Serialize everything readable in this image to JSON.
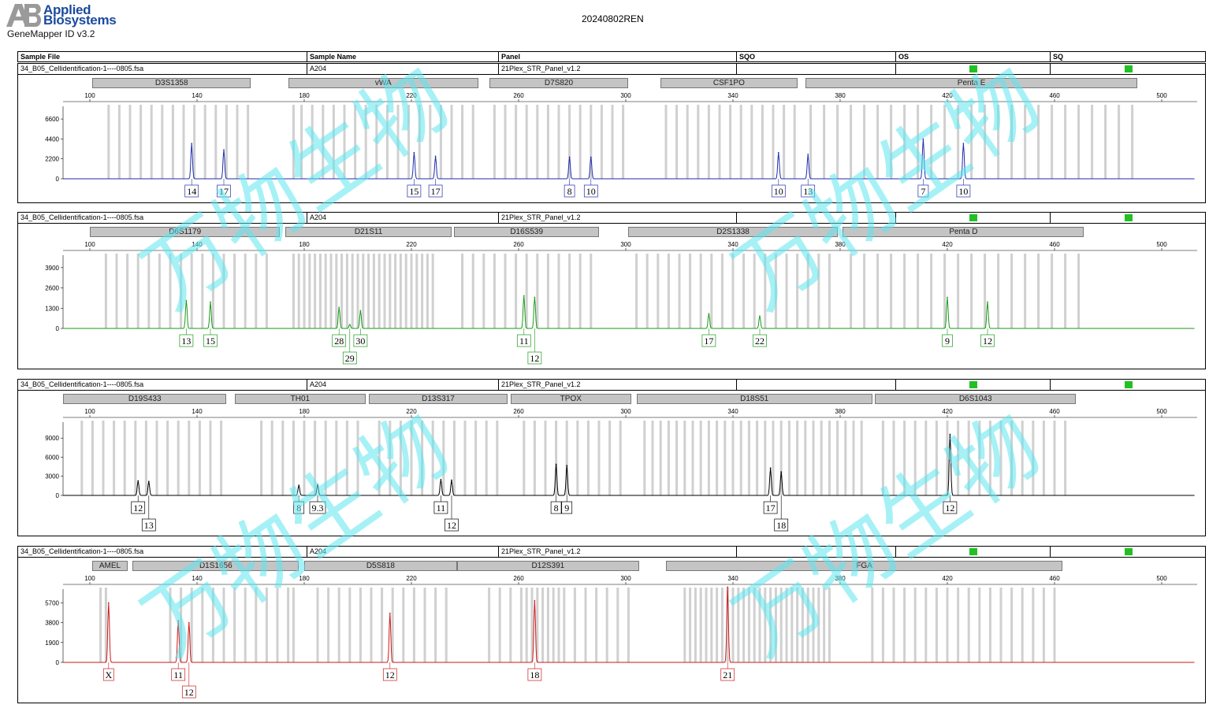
{
  "brand": {
    "line1": "Applied",
    "line2": "Biosystems",
    "logo": "AB",
    "software": "GeneMapper ID v3.2"
  },
  "run_title": "20240802REN",
  "header": {
    "sample_file": "Sample File",
    "sample_name": "Sample Name",
    "panel": "Panel",
    "sqo": "SQO",
    "os": "OS",
    "sq": "SQ"
  },
  "watermark": "万物生物",
  "colors": {
    "blue": "#1f2dae",
    "green": "#1a9a1a",
    "black": "#000000",
    "red": "#cc1a1a",
    "quality_flag": "#22c022",
    "bin": "#d0d0d0"
  },
  "chart_data": [
    {
      "type": "line",
      "title": "34_B05_Cellidentification-1----0805.fsa",
      "dye": "blue",
      "sample_file": "34_B05_Cellidentification-1----0805.fsa",
      "sample_name": "A204",
      "panel": "21Plex_STR_Panel_v1.2",
      "x_ticks": [
        100,
        140,
        180,
        220,
        260,
        300,
        340,
        380,
        420,
        460,
        500
      ],
      "y_ticks": [
        0,
        2200,
        4400,
        6600
      ],
      "ylim": [
        0,
        8000
      ],
      "markers": [
        {
          "name": "D3S1358",
          "start": 101,
          "end": 160
        },
        {
          "name": "vWA",
          "start": 174,
          "end": 245
        },
        {
          "name": "D7S820",
          "start": 249,
          "end": 301
        },
        {
          "name": "CSF1PO",
          "start": 313,
          "end": 364
        },
        {
          "name": "Penta E",
          "start": 367,
          "end": 491
        }
      ],
      "bins": [
        107,
        111,
        115,
        119,
        123,
        127,
        131,
        135,
        139,
        143,
        147,
        151,
        155,
        159,
        176,
        179,
        183,
        187,
        191,
        195,
        199,
        203,
        207,
        211,
        215,
        219,
        223,
        227,
        231,
        235,
        239,
        243,
        251,
        255,
        259,
        263,
        267,
        271,
        275,
        279,
        283,
        287,
        291,
        295,
        299,
        315,
        319,
        323,
        327,
        331,
        335,
        339,
        343,
        347,
        351,
        355,
        359,
        363,
        369,
        374,
        379,
        384,
        389,
        394,
        399,
        404,
        409,
        414,
        419,
        424,
        429,
        434,
        439,
        444,
        449,
        454,
        459,
        464,
        469,
        474,
        479,
        484,
        489
      ],
      "peaks": [
        {
          "x": 138,
          "h": 3900
        },
        {
          "x": 150,
          "h": 3200
        },
        {
          "x": 221,
          "h": 2900
        },
        {
          "x": 229,
          "h": 2500
        },
        {
          "x": 279,
          "h": 2400
        },
        {
          "x": 287,
          "h": 2400
        },
        {
          "x": 357,
          "h": 2900
        },
        {
          "x": 368,
          "h": 2700
        },
        {
          "x": 411,
          "h": 4400
        },
        {
          "x": 426,
          "h": 3900
        }
      ],
      "alleles": [
        {
          "label": "14",
          "x": 138,
          "row": 1
        },
        {
          "label": "17",
          "x": 150,
          "row": 1
        },
        {
          "label": "15",
          "x": 221,
          "row": 1
        },
        {
          "label": "17",
          "x": 229,
          "row": 1
        },
        {
          "label": "8",
          "x": 279,
          "row": 1
        },
        {
          "label": "10",
          "x": 287,
          "row": 1
        },
        {
          "label": "10",
          "x": 357,
          "row": 1
        },
        {
          "label": "13",
          "x": 368,
          "row": 1
        },
        {
          "label": "7",
          "x": 411,
          "row": 1
        },
        {
          "label": "10",
          "x": 426,
          "row": 1
        }
      ]
    },
    {
      "type": "line",
      "title": "34_B05_Cellidentification-1----0805.fsa",
      "dye": "green",
      "sample_file": "34_B05_Cellidentification-1----0805.fsa",
      "sample_name": "A204",
      "panel": "21Plex_STR_Panel_v1.2",
      "x_ticks": [
        100,
        140,
        180,
        220,
        260,
        300,
        340,
        380,
        420,
        460,
        500
      ],
      "y_ticks": [
        0,
        1300,
        2600,
        3900
      ],
      "ylim": [
        0,
        4700
      ],
      "markers": [
        {
          "name": "D6S1179",
          "start": 100,
          "end": 171
        },
        {
          "name": "D21S11",
          "start": 173,
          "end": 235
        },
        {
          "name": "D16S539",
          "start": 236,
          "end": 290
        },
        {
          "name": "D2S1338",
          "start": 301,
          "end": 379
        },
        {
          "name": "Penta D",
          "start": 381,
          "end": 471
        }
      ],
      "bins": [
        106,
        110,
        114,
        118,
        122,
        126,
        130,
        134,
        138,
        142,
        146,
        150,
        154,
        158,
        162,
        166,
        176,
        178,
        180,
        182,
        184,
        186,
        188,
        190,
        192,
        194,
        196,
        198,
        200,
        202,
        204,
        206,
        208,
        210,
        212,
        214,
        216,
        218,
        220,
        222,
        224,
        226,
        228,
        239,
        243,
        247,
        251,
        255,
        259,
        263,
        267,
        271,
        275,
        279,
        283,
        287,
        304,
        308,
        312,
        316,
        320,
        324,
        328,
        332,
        336,
        340,
        344,
        348,
        352,
        356,
        360,
        364,
        368,
        372,
        376,
        384,
        389,
        394,
        399,
        404,
        409,
        414,
        419,
        424,
        429,
        434,
        439,
        444,
        449,
        454,
        459,
        464,
        469
      ],
      "peaks": [
        {
          "x": 136,
          "h": 1800
        },
        {
          "x": 145,
          "h": 1700
        },
        {
          "x": 193,
          "h": 1350
        },
        {
          "x": 201,
          "h": 1150
        },
        {
          "x": 197,
          "h": 250
        },
        {
          "x": 262,
          "h": 2100
        },
        {
          "x": 266,
          "h": 2000
        },
        {
          "x": 331,
          "h": 950
        },
        {
          "x": 350,
          "h": 800
        },
        {
          "x": 420,
          "h": 2000
        },
        {
          "x": 435,
          "h": 1700
        }
      ],
      "alleles": [
        {
          "label": "13",
          "x": 136,
          "row": 1
        },
        {
          "label": "15",
          "x": 145,
          "row": 1
        },
        {
          "label": "28",
          "x": 193,
          "row": 1
        },
        {
          "label": "30",
          "x": 201,
          "row": 1
        },
        {
          "label": "29",
          "x": 197,
          "row": 2
        },
        {
          "label": "11",
          "x": 262,
          "row": 1
        },
        {
          "label": "12",
          "x": 266,
          "row": 2
        },
        {
          "label": "17",
          "x": 331,
          "row": 1
        },
        {
          "label": "22",
          "x": 350,
          "row": 1
        },
        {
          "label": "9",
          "x": 420,
          "row": 1
        },
        {
          "label": "12",
          "x": 435,
          "row": 1
        }
      ]
    },
    {
      "type": "line",
      "title": "34_B05_Cellidentification-1----0805.fsa",
      "dye": "black",
      "sample_file": "34_B05_Cellidentification-1----0805.fsa",
      "sample_name": "A204",
      "panel": "21Plex_STR_Panel_v1.2",
      "x_ticks": [
        100,
        140,
        180,
        220,
        260,
        300,
        340,
        380,
        420,
        460,
        500
      ],
      "y_ticks": [
        0,
        3000,
        6000,
        9000
      ],
      "ylim": [
        0,
        11500
      ],
      "markers": [
        {
          "name": "D19S433",
          "start": 90,
          "end": 151
        },
        {
          "name": "TH01",
          "start": 154,
          "end": 203
        },
        {
          "name": "D13S317",
          "start": 204,
          "end": 256
        },
        {
          "name": "TPOX",
          "start": 257,
          "end": 302
        },
        {
          "name": "D18S51",
          "start": 304,
          "end": 392
        },
        {
          "name": "D6S1043",
          "start": 393,
          "end": 468
        }
      ],
      "bins": [
        97,
        101,
        105,
        109,
        113,
        117,
        121,
        125,
        129,
        133,
        137,
        141,
        145,
        149,
        164,
        168,
        172,
        176,
        180,
        184,
        188,
        192,
        196,
        200,
        208,
        212,
        216,
        220,
        224,
        228,
        232,
        236,
        240,
        244,
        248,
        252,
        262,
        266,
        270,
        274,
        278,
        282,
        286,
        290,
        294,
        298,
        307,
        310,
        313,
        316,
        319,
        322,
        325,
        328,
        331,
        334,
        337,
        340,
        343,
        346,
        349,
        352,
        355,
        358,
        361,
        364,
        367,
        370,
        373,
        376,
        379,
        382,
        385,
        388,
        396,
        400,
        404,
        408,
        412,
        416,
        420,
        424,
        428,
        432,
        436,
        440,
        444,
        448,
        452,
        456,
        460,
        464
      ],
      "peaks": [
        {
          "x": 118,
          "h": 2300
        },
        {
          "x": 122,
          "h": 2200
        },
        {
          "x": 178,
          "h": 1600
        },
        {
          "x": 185,
          "h": 1700
        },
        {
          "x": 231,
          "h": 2500
        },
        {
          "x": 235,
          "h": 2400
        },
        {
          "x": 274,
          "h": 4900
        },
        {
          "x": 278,
          "h": 4700
        },
        {
          "x": 354,
          "h": 4300
        },
        {
          "x": 358,
          "h": 3700
        },
        {
          "x": 421,
          "h": 9600
        }
      ],
      "alleles": [
        {
          "label": "12",
          "x": 118,
          "row": 1
        },
        {
          "label": "13",
          "x": 122,
          "row": 2
        },
        {
          "label": "8",
          "x": 178,
          "row": 1
        },
        {
          "label": "9.3",
          "x": 185,
          "row": 1
        },
        {
          "label": "11",
          "x": 231,
          "row": 1
        },
        {
          "label": "12",
          "x": 235,
          "row": 2
        },
        {
          "label": "8",
          "x": 274,
          "row": 1
        },
        {
          "label": "9",
          "x": 278,
          "row": 1
        },
        {
          "label": "17",
          "x": 354,
          "row": 1
        },
        {
          "label": "18",
          "x": 358,
          "row": 2
        },
        {
          "label": "12",
          "x": 421,
          "row": 1
        }
      ]
    },
    {
      "type": "line",
      "title": "34_B05_Cellidentification-1----0805.fsa",
      "dye": "red",
      "sample_file": "34_B05_Cellidentification-1----0805.fsa",
      "sample_name": "A204",
      "panel": "21Plex_STR_Panel_v1.2",
      "x_ticks": [
        100,
        140,
        180,
        220,
        260,
        300,
        340,
        380,
        420,
        460,
        500
      ],
      "y_ticks": [
        0,
        1900,
        3800,
        5700
      ],
      "ylim": [
        0,
        7000
      ],
      "markers": [
        {
          "name": "AMEL",
          "start": 101,
          "end": 114
        },
        {
          "name": "D1S1656",
          "start": 116,
          "end": 178
        },
        {
          "name": "D5S818",
          "start": 180,
          "end": 237
        },
        {
          "name": "D12S391",
          "start": 237,
          "end": 305
        },
        {
          "name": "FGA",
          "start": 315,
          "end": 463
        }
      ],
      "bins": [
        104,
        106,
        130,
        134,
        138,
        142,
        146,
        150,
        154,
        158,
        162,
        166,
        170,
        174,
        176,
        185,
        189,
        193,
        197,
        201,
        205,
        209,
        213,
        217,
        221,
        225,
        229,
        233,
        249,
        253,
        257,
        261,
        263,
        265,
        267,
        269,
        271,
        273,
        275,
        277,
        281,
        285,
        289,
        293,
        297,
        301,
        322,
        324,
        326,
        328,
        330,
        332,
        334,
        336,
        338,
        340,
        342,
        344,
        346,
        348,
        350,
        352,
        354,
        356,
        358,
        360,
        362,
        364,
        366,
        368,
        370,
        372,
        374,
        376,
        392,
        396,
        400,
        404,
        408,
        412,
        416,
        420,
        424,
        428,
        432,
        436,
        440,
        444,
        448,
        452,
        456,
        460
      ],
      "peaks": [
        {
          "x": 107,
          "h": 5700
        },
        {
          "x": 133,
          "h": 4000
        },
        {
          "x": 137,
          "h": 3800
        },
        {
          "x": 212,
          "h": 4700
        },
        {
          "x": 266,
          "h": 5900
        },
        {
          "x": 338,
          "h": 7200
        }
      ],
      "alleles": [
        {
          "label": "X",
          "x": 107,
          "row": 1
        },
        {
          "label": "11",
          "x": 133,
          "row": 1
        },
        {
          "label": "12",
          "x": 137,
          "row": 2
        },
        {
          "label": "12",
          "x": 212,
          "row": 1
        },
        {
          "label": "18",
          "x": 266,
          "row": 1
        },
        {
          "label": "21",
          "x": 338,
          "row": 1
        }
      ]
    }
  ]
}
